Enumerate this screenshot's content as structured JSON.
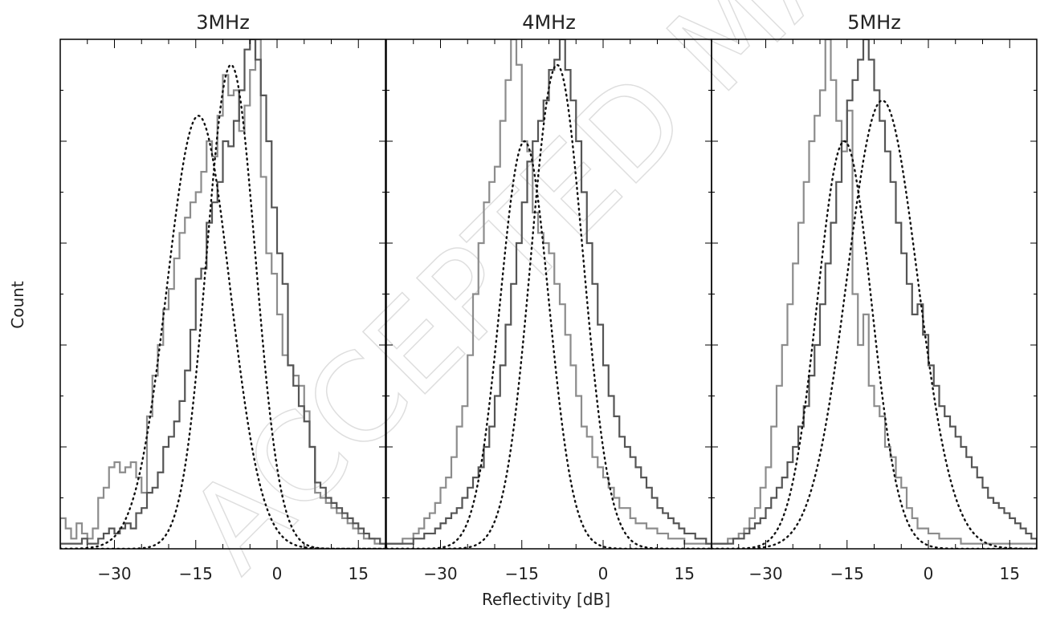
{
  "figure": {
    "xlabel": "Reflectivity [dB]",
    "ylabel": "Count",
    "watermark": "ACCEPTED MANUSCRIPT"
  },
  "chart_data": [
    {
      "type": "histogram",
      "title": "3MHz",
      "xlim": [
        -40,
        20
      ],
      "xticks": [
        -30,
        -15,
        0,
        15
      ],
      "xtick_labels": [
        "−30",
        "−15",
        "0",
        "15"
      ],
      "ylim": [
        0,
        100
      ],
      "series": [
        {
          "color": "#8c8c8c",
          "bin_width": 1,
          "x_start": -40,
          "values": [
            6,
            4,
            2,
            5,
            3,
            2,
            4,
            10,
            12,
            16,
            17,
            15,
            16,
            17,
            14,
            11,
            26,
            34,
            40,
            47,
            51,
            57,
            62,
            65,
            68,
            70,
            74,
            80,
            77,
            85,
            93,
            89,
            90,
            82,
            87,
            94,
            100,
            73,
            58,
            54,
            46,
            38,
            36,
            34,
            32,
            27,
            20,
            11,
            10,
            9,
            8,
            7,
            6,
            5,
            4,
            3,
            2,
            2,
            1,
            1
          ]
        },
        {
          "color": "#555555",
          "bin_width": 1,
          "x_start": -40,
          "values": [
            1,
            1,
            1,
            1,
            2,
            1,
            1,
            2,
            3,
            4,
            3,
            4,
            5,
            4,
            7,
            8,
            11,
            12,
            15,
            20,
            22,
            25,
            29,
            35,
            43,
            53,
            55,
            64,
            68,
            72,
            80,
            79,
            84,
            90,
            98,
            100,
            96,
            89,
            80,
            67,
            58,
            52,
            36,
            32,
            28,
            25,
            20,
            13,
            12,
            10,
            9,
            8,
            7,
            6,
            5,
            4,
            3,
            2,
            2,
            1
          ]
        },
        {
          "color": "#111111",
          "style": "dotted",
          "gaussian": {
            "mean": -14.5,
            "sigma": 5.8,
            "peak": 85
          }
        },
        {
          "color": "#111111",
          "style": "dotted",
          "gaussian": {
            "mean": -8.5,
            "sigma": 4.5,
            "peak": 95
          }
        }
      ]
    },
    {
      "type": "histogram",
      "title": "4MHz",
      "xlim": [
        -40,
        20
      ],
      "xticks": [
        -30,
        -15,
        0,
        15
      ],
      "xtick_labels": [
        "−30",
        "−15",
        "0",
        "15"
      ],
      "ylim": [
        0,
        100
      ],
      "series": [
        {
          "color": "#8c8c8c",
          "bin_width": 1,
          "x_start": -40,
          "values": [
            1,
            1,
            1,
            2,
            2,
            3,
            4,
            6,
            7,
            9,
            12,
            14,
            18,
            24,
            28,
            38,
            50,
            60,
            68,
            72,
            75,
            84,
            92,
            100,
            95,
            80,
            78,
            66,
            62,
            60,
            58,
            52,
            48,
            42,
            36,
            30,
            24,
            22,
            18,
            16,
            14,
            12,
            10,
            8,
            8,
            6,
            5,
            5,
            4,
            4,
            3,
            3,
            2,
            2,
            2,
            1,
            1,
            1,
            1,
            1
          ]
        },
        {
          "color": "#555555",
          "bin_width": 1,
          "x_start": -40,
          "values": [
            1,
            1,
            1,
            1,
            1,
            2,
            2,
            3,
            3,
            4,
            5,
            6,
            7,
            8,
            10,
            12,
            14,
            16,
            20,
            24,
            30,
            36,
            44,
            52,
            60,
            68,
            76,
            80,
            84,
            88,
            94,
            96,
            100,
            94,
            88,
            80,
            70,
            60,
            52,
            44,
            36,
            30,
            26,
            22,
            20,
            18,
            16,
            14,
            12,
            10,
            8,
            7,
            6,
            5,
            4,
            3,
            3,
            2,
            2,
            1
          ]
        },
        {
          "color": "#111111",
          "style": "dotted",
          "gaussian": {
            "mean": -14.5,
            "sigma": 4.5,
            "peak": 80
          }
        },
        {
          "color": "#111111",
          "style": "dotted",
          "gaussian": {
            "mean": -8.5,
            "sigma": 4.8,
            "peak": 95
          }
        }
      ]
    },
    {
      "type": "histogram",
      "title": "5MHz",
      "xlim": [
        -40,
        20
      ],
      "xticks": [
        -30,
        -15,
        0,
        15
      ],
      "xtick_labels": [
        "−30",
        "−15",
        "0",
        "15"
      ],
      "ylim": [
        0,
        100
      ],
      "series": [
        {
          "color": "#8c8c8c",
          "bin_width": 1,
          "x_start": -40,
          "values": [
            1,
            1,
            1,
            2,
            2,
            3,
            4,
            6,
            8,
            12,
            16,
            24,
            32,
            40,
            48,
            56,
            64,
            72,
            80,
            85,
            90,
            100,
            92,
            84,
            78,
            86,
            50,
            40,
            46,
            32,
            28,
            26,
            20,
            18,
            14,
            12,
            8,
            6,
            4,
            4,
            3,
            3,
            2,
            2,
            2,
            2,
            1,
            1,
            1,
            1,
            1,
            1,
            1,
            1,
            1,
            1,
            1,
            1,
            1,
            1
          ]
        },
        {
          "color": "#555555",
          "bin_width": 1,
          "x_start": -40,
          "values": [
            1,
            1,
            1,
            1,
            2,
            2,
            3,
            4,
            5,
            6,
            8,
            10,
            12,
            14,
            17,
            20,
            24,
            28,
            34,
            40,
            48,
            56,
            64,
            72,
            80,
            88,
            92,
            96,
            100,
            96,
            90,
            84,
            78,
            72,
            64,
            58,
            52,
            46,
            48,
            42,
            36,
            32,
            28,
            26,
            24,
            22,
            20,
            18,
            16,
            14,
            12,
            10,
            9,
            8,
            7,
            6,
            5,
            4,
            3,
            2
          ]
        },
        {
          "color": "#111111",
          "style": "dotted",
          "gaussian": {
            "mean": -15.5,
            "sigma": 5.0,
            "peak": 80
          }
        },
        {
          "color": "#111111",
          "style": "dotted",
          "gaussian": {
            "mean": -8.5,
            "sigma": 6.5,
            "peak": 88
          }
        }
      ]
    }
  ]
}
